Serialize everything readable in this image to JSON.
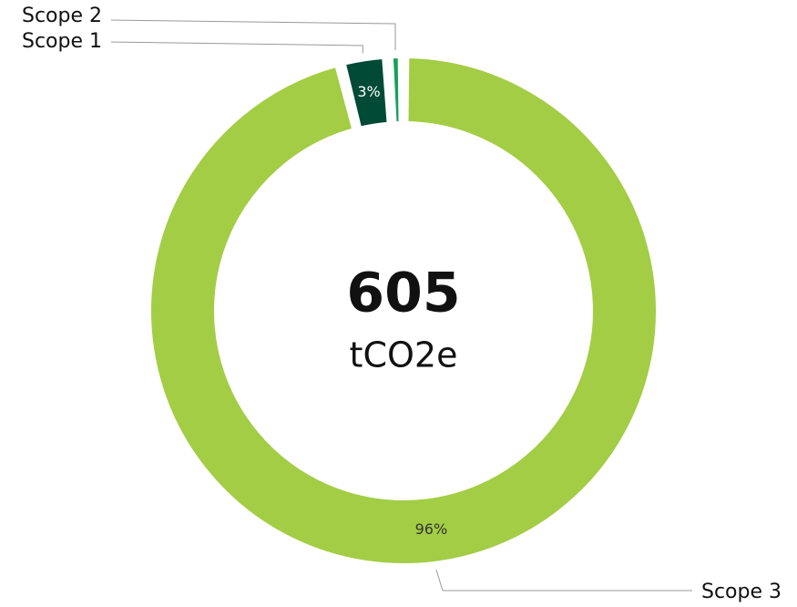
{
  "chart_data": {
    "type": "donut",
    "categories": [
      "Scope 3",
      "Scope 1",
      "Scope 2"
    ],
    "values": [
      96,
      3,
      1
    ],
    "value_labels": [
      "96%",
      "3%",
      null
    ],
    "colors": [
      "#a3cd45",
      "#004a36",
      "#17a05a"
    ],
    "center_value": 605,
    "center_label": "tCO2e"
  }
}
